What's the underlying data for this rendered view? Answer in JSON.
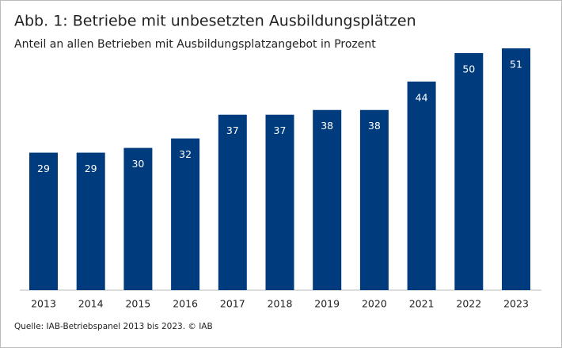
{
  "chart_data": {
    "type": "bar",
    "title": "Abb. 1: Betriebe mit unbesetzten Ausbildungsplätzen",
    "subtitle": "Anteil an allen Betrieben mit Ausbildungsplatzangebot in Prozent",
    "categories": [
      "2013",
      "2014",
      "2015",
      "2016",
      "2017",
      "2018",
      "2019",
      "2020",
      "2021",
      "2022",
      "2023"
    ],
    "values": [
      29,
      29,
      30,
      32,
      37,
      37,
      38,
      38,
      44,
      50,
      51
    ],
    "color": "#003b7d",
    "source": "Quelle: IAB-Betriebspanel 2013 bis 2023.  © IAB"
  }
}
